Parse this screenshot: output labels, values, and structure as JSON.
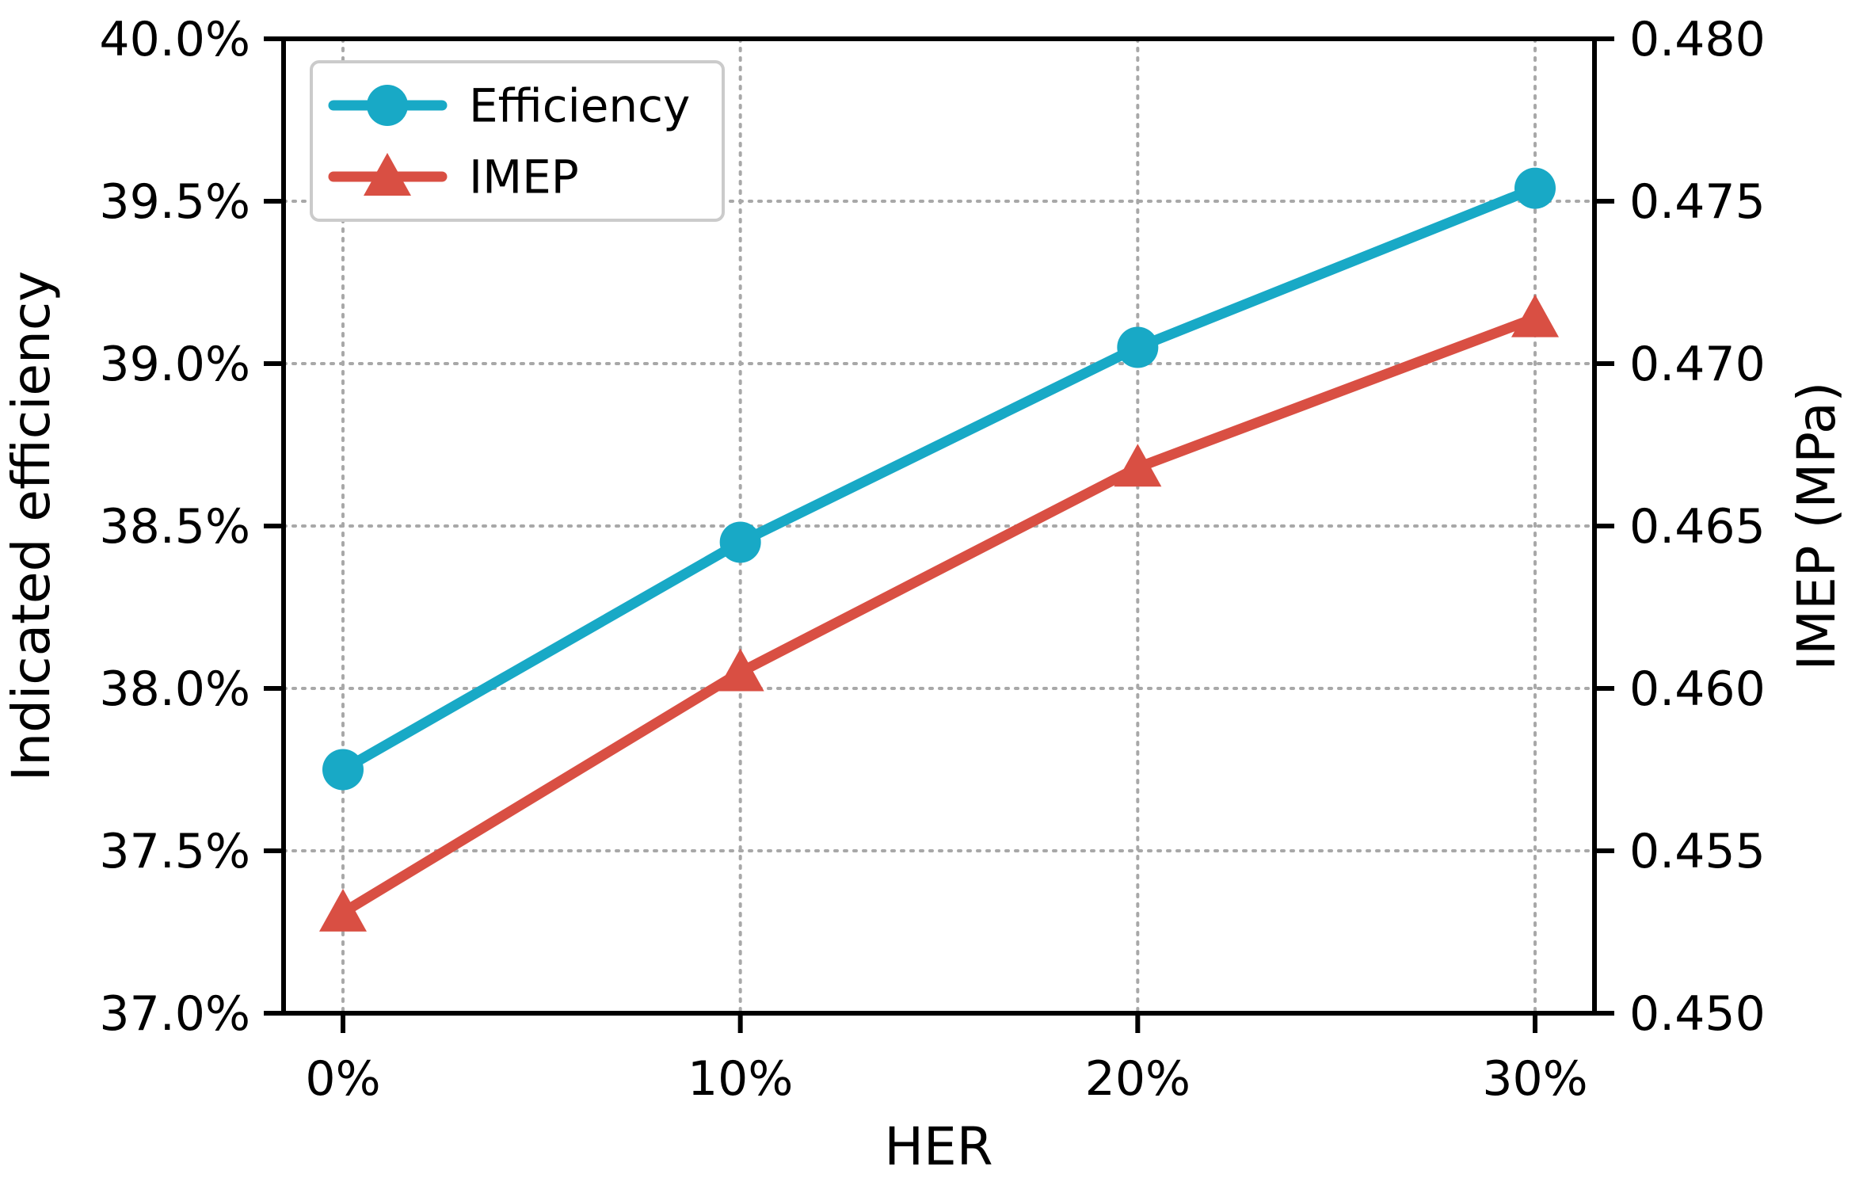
{
  "figure": {
    "background": "#ffffff",
    "text_color": "#000000",
    "grid_color": "#a8a8a8",
    "legend_border_color": "#cbcbcb"
  },
  "chart_data": {
    "type": "line",
    "title": "",
    "xlabel": "HER",
    "ylabel_left": "Indicated efficiency",
    "ylabel_right": "IMEP (MPa)",
    "categories": [
      "0%",
      "10%",
      "20%",
      "30%"
    ],
    "series": [
      {
        "name": "Efficiency",
        "axis": "left",
        "color": "#18a9c6",
        "marker": "circle",
        "unit": "%",
        "values": [
          37.75,
          38.45,
          39.05,
          39.54
        ]
      },
      {
        "name": "IMEP",
        "axis": "right",
        "color": "#d94f43",
        "marker": "triangle-up",
        "unit": "MPa",
        "values": [
          0.4531,
          0.4605,
          0.4668,
          0.4714
        ]
      }
    ],
    "y_left": {
      "min": 37.0,
      "max": 40.0,
      "tick_values": [
        40.0,
        39.5,
        39.0,
        38.5,
        38.0,
        37.5,
        37.0
      ],
      "tick_labels": [
        "40.0%",
        "39.5%",
        "39.0%",
        "38.5%",
        "38.0%",
        "37.5%",
        "37.0%"
      ]
    },
    "y_right": {
      "min": 0.45,
      "max": 0.48,
      "tick_values": [
        0.48,
        0.475,
        0.47,
        0.465,
        0.46,
        0.455,
        0.45
      ],
      "tick_labels": [
        "0.480",
        "0.475",
        "0.470",
        "0.465",
        "0.460",
        "0.455",
        "0.450"
      ]
    },
    "grid": "dotted",
    "legend": {
      "position": "upper-left",
      "entries": [
        "Efficiency",
        "IMEP"
      ]
    }
  }
}
